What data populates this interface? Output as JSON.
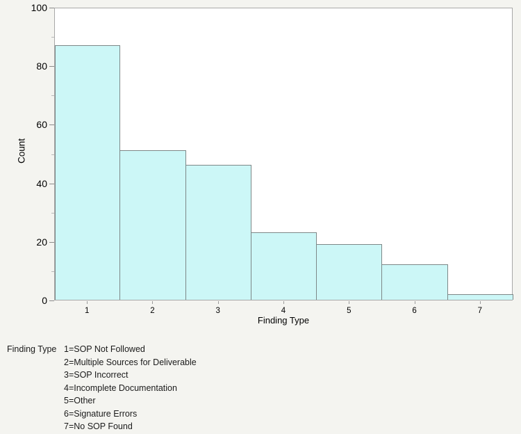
{
  "chart_data": {
    "type": "bar",
    "title": "",
    "categories": [
      "1",
      "2",
      "3",
      "4",
      "5",
      "6",
      "7"
    ],
    "values": [
      87,
      51,
      46,
      23,
      19,
      12,
      2
    ],
    "xlabel": "Finding Type",
    "ylabel": "Count",
    "ylim": [
      0,
      100
    ],
    "yticks_major": [
      0,
      20,
      40,
      60,
      80,
      100
    ],
    "yticks_minor": [
      10,
      30,
      50,
      70,
      90
    ],
    "grid": false,
    "legend_position": "below",
    "colors": {
      "page_bg": "#f4f4f0",
      "plot_bg": "#ffffff",
      "frame_border": "#a8a8a8",
      "bar_fill": "#ccf7f7",
      "bar_border": "#7d8787",
      "tick_major": "#8a8a8a",
      "tick_minor": "#b8b8b8",
      "text": "#000000"
    }
  },
  "legend": {
    "title": "Finding Type",
    "items": [
      "1=SOP Not Followed",
      "2=Multiple Sources for Deliverable",
      "3=SOP Incorrect",
      "4=Incomplete Documentation",
      "5=Other",
      "6=Signature Errors",
      "7=No SOP Found"
    ]
  }
}
